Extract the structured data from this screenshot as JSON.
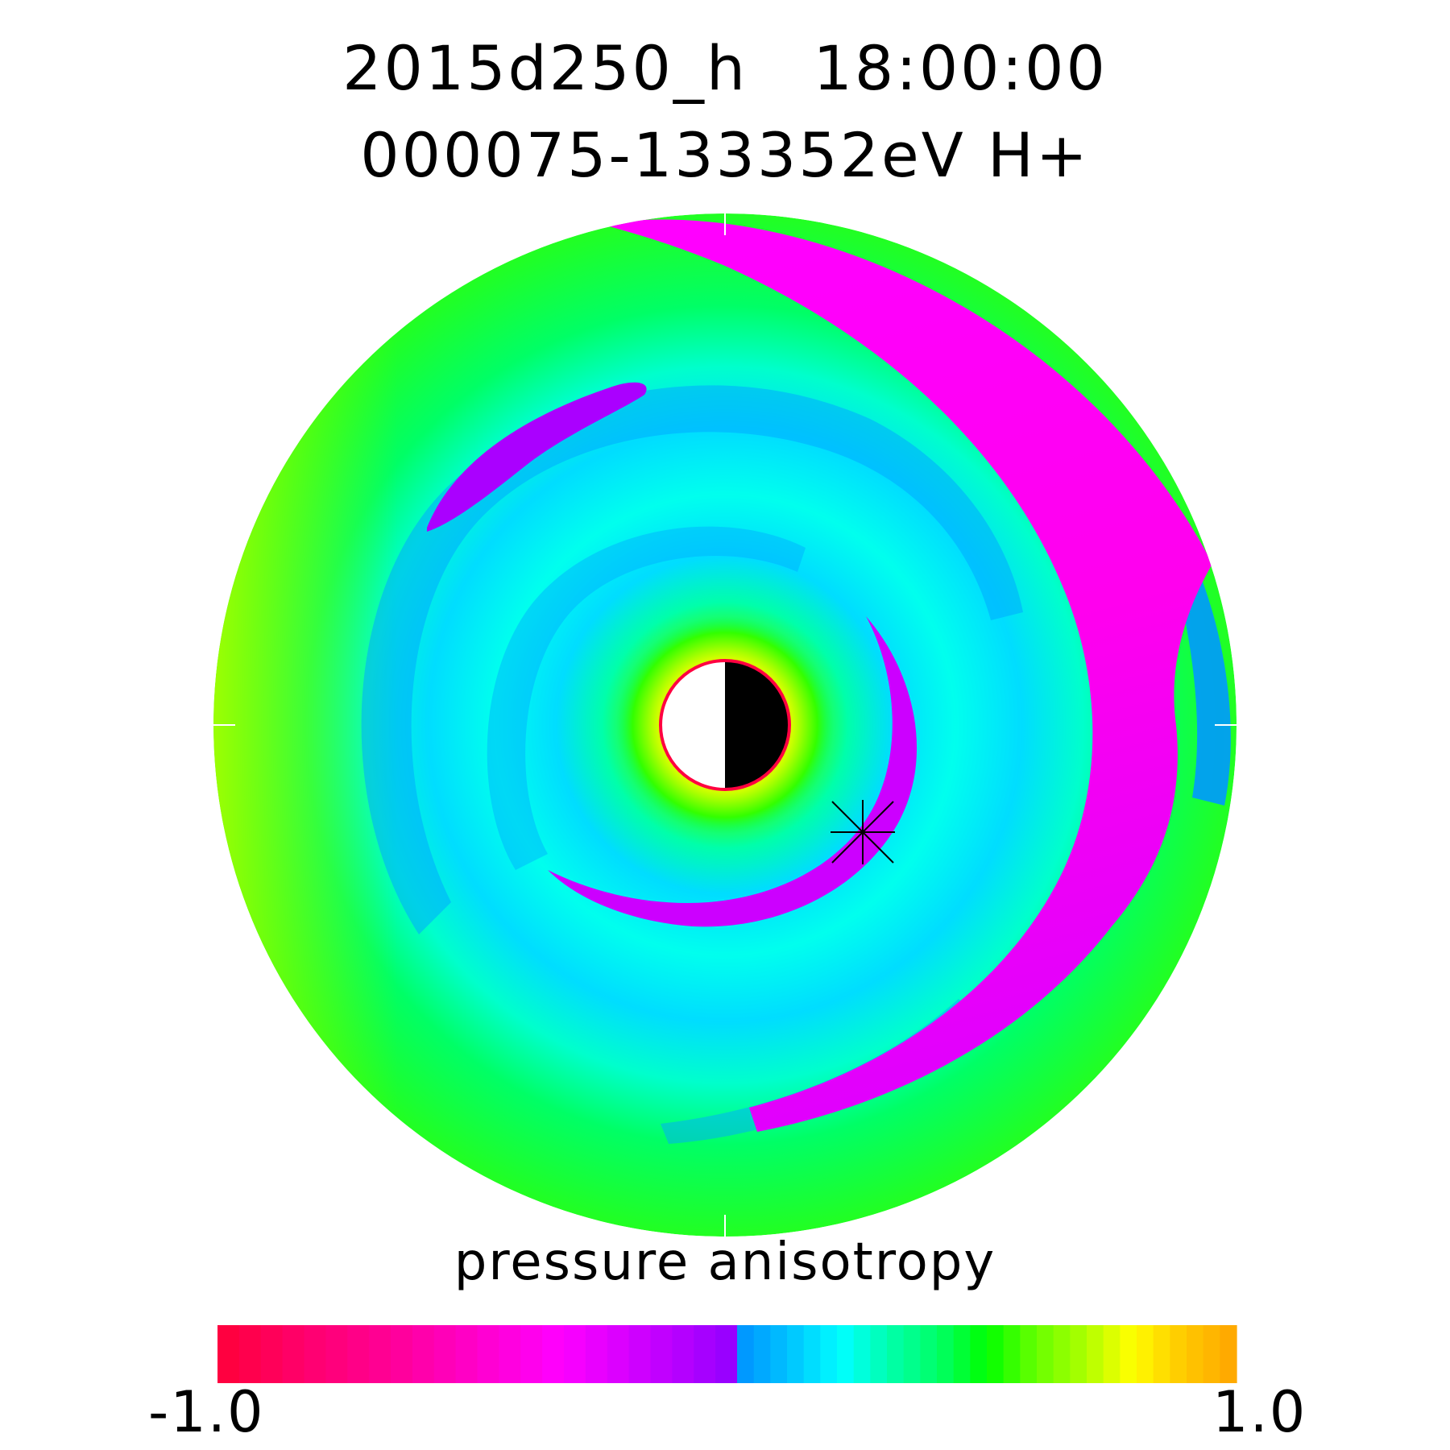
{
  "chart_data": {
    "type": "heatmap",
    "projection": "polar",
    "title_line1": "2015d250_h   18:00:00",
    "title_line2": "000075-133352eV H+",
    "colorbar": {
      "label": "pressure anisotropy",
      "min_label": "-1.0",
      "max_label": "1.0",
      "range": [
        -1.0,
        1.0
      ],
      "colors": [
        "#ff0040",
        "#ff0070",
        "#ff0099",
        "#ff00cc",
        "#ff00ff",
        "#cc00ff",
        "#9900ff",
        "#0099ff",
        "#00c8ff",
        "#00ffff",
        "#00ffaa",
        "#00ff66",
        "#00ff00",
        "#66ff00",
        "#aaff00",
        "#ffff00",
        "#ffcc00",
        "#ffaa00"
      ],
      "zero_index": 7
    },
    "marker": "asterisk"
  }
}
